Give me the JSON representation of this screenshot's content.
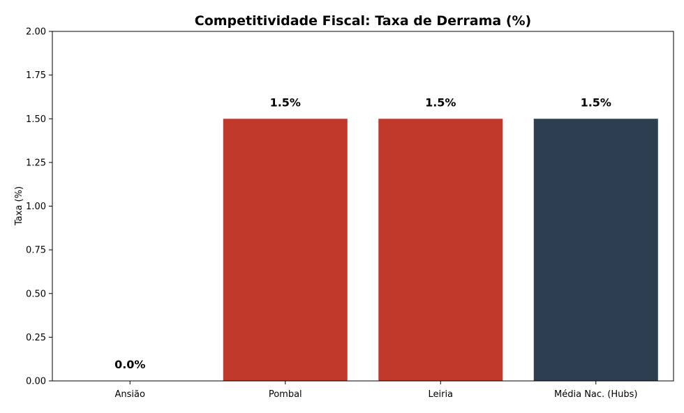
{
  "chart_data": {
    "type": "bar",
    "title": "Competitividade Fiscal: Taxa de Derrama (%)",
    "xlabel": "",
    "ylabel": "Taxa (%)",
    "ylim": [
      0,
      2.0
    ],
    "yticks": [
      "0.00",
      "0.25",
      "0.50",
      "0.75",
      "1.00",
      "1.25",
      "1.50",
      "1.75",
      "2.00"
    ],
    "categories": [
      "Ansião",
      "Pombal",
      "Leiria",
      "Média Nac. (Hubs)"
    ],
    "values": [
      0.0,
      1.5,
      1.5,
      1.5
    ],
    "data_labels": [
      "0.0%",
      "1.5%",
      "1.5%",
      "1.5%"
    ],
    "colors": [
      "#c0392b",
      "#c0392b",
      "#c0392b",
      "#2c3e50"
    ],
    "grid": false,
    "legend": "none"
  }
}
